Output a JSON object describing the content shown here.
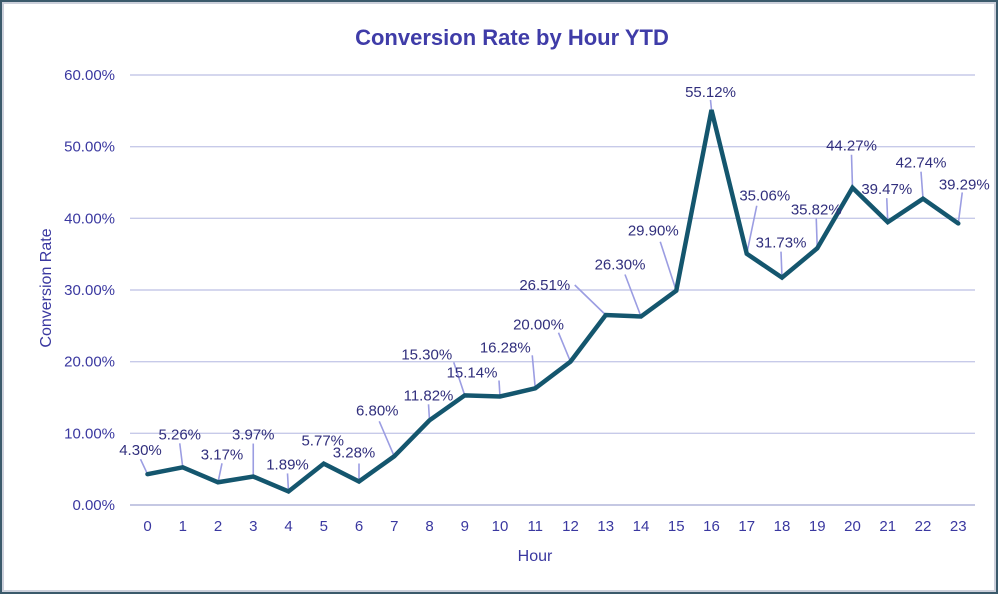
{
  "window": {
    "background": "#ffffff",
    "border_outer": "#3b5a6b",
    "border_inner": "#ccd0db"
  },
  "chart_data": {
    "type": "line",
    "title": "Conversion Rate by Hour YTD",
    "xlabel": "Hour",
    "ylabel": "Conversion Rate",
    "categories": [
      "0",
      "1",
      "2",
      "3",
      "4",
      "5",
      "6",
      "7",
      "8",
      "9",
      "10",
      "11",
      "12",
      "13",
      "14",
      "15",
      "16",
      "17",
      "18",
      "19",
      "20",
      "21",
      "22",
      "23"
    ],
    "values": [
      4.3,
      5.26,
      3.17,
      3.97,
      1.89,
      5.77,
      3.28,
      6.8,
      11.82,
      15.3,
      15.14,
      16.28,
      20.0,
      26.51,
      26.3,
      29.9,
      55.12,
      35.06,
      31.73,
      35.82,
      44.27,
      39.47,
      42.74,
      39.29
    ],
    "point_labels": [
      "4.30%",
      "5.26%",
      "3.17%",
      "3.97%",
      "1.89%",
      "5.77%",
      "3.28%",
      "6.80%",
      "11.82%",
      "15.30%",
      "15.14%",
      "16.28%",
      "20.00%",
      "26.51%",
      "26.30%",
      "29.90%",
      "55.12%",
      "35.06%",
      "31.73%",
      "35.82%",
      "44.27%",
      "39.47%",
      "42.74%",
      "39.29%"
    ],
    "y_ticks": [
      "0.00%",
      "10.00%",
      "20.00%",
      "30.00%",
      "40.00%",
      "50.00%",
      "60.00%"
    ],
    "ylim": [
      0,
      60
    ],
    "y_tick_step": 10,
    "grid": true,
    "legend": false,
    "colors": {
      "line": "#14566e",
      "title": "#3f3ca8",
      "axis_text": "#3a38a0",
      "data_label": "#312f7d",
      "gridline": "#c7cae9",
      "axis_line": "#b2b5da",
      "leader_line": "#9b9de2"
    }
  }
}
